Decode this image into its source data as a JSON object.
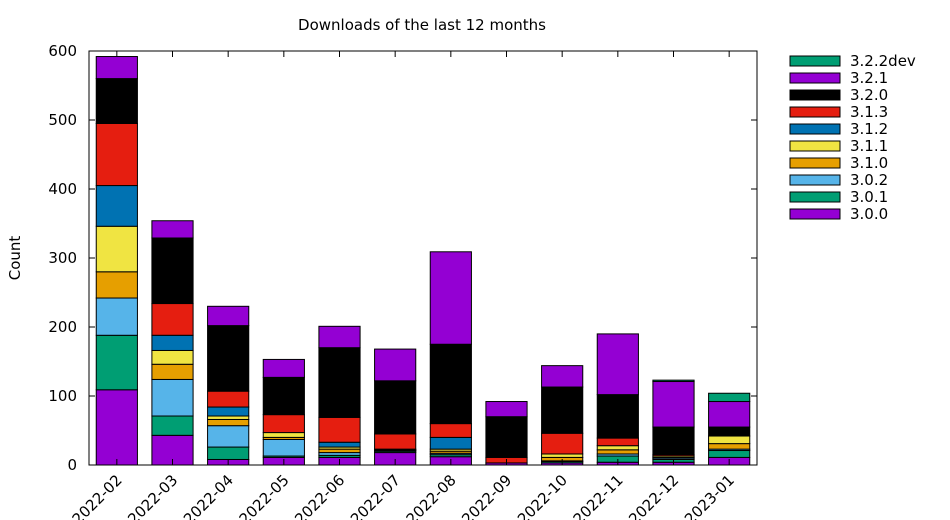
{
  "chart_data": {
    "type": "bar",
    "title": "Downloads of the last 12 months",
    "xlabel": "",
    "ylabel": "Count",
    "ylim": [
      0,
      600
    ],
    "yticks": [
      0,
      100,
      200,
      300,
      400,
      500,
      600
    ],
    "grid": false,
    "stacked": true,
    "legend_position": "right-outside",
    "categories": [
      "2022-02",
      "2022-03",
      "2022-04",
      "2022-05",
      "2022-06",
      "2022-07",
      "2022-08",
      "2022-09",
      "2022-10",
      "2022-11",
      "2022-12",
      "2023-01"
    ],
    "series": [
      {
        "name": "3.0.0",
        "color": "#9400d3",
        "values": [
          109,
          43,
          8,
          11,
          11,
          18,
          12,
          3,
          3,
          4,
          4,
          11
        ]
      },
      {
        "name": "3.0.1",
        "color": "#009e73",
        "values": [
          79,
          28,
          18,
          2,
          3,
          2,
          3,
          0,
          2,
          9,
          4,
          10
        ]
      },
      {
        "name": "3.0.2",
        "color": "#56b4e9",
        "values": [
          54,
          53,
          31,
          24,
          4,
          1,
          2,
          0,
          1,
          3,
          2,
          2
        ]
      },
      {
        "name": "3.1.0",
        "color": "#e69f00",
        "values": [
          38,
          22,
          9,
          3,
          5,
          1,
          3,
          0,
          5,
          6,
          1,
          8
        ]
      },
      {
        "name": "3.1.1",
        "color": "#f0e442",
        "values": [
          66,
          20,
          5,
          7,
          3,
          1,
          3,
          0,
          5,
          6,
          2,
          11
        ]
      },
      {
        "name": "3.1.2",
        "color": "#0072b2",
        "values": [
          59,
          22,
          13,
          0,
          7,
          0,
          17,
          0,
          0,
          0,
          0,
          0
        ]
      },
      {
        "name": "3.1.3",
        "color": "#e51e10",
        "values": [
          90,
          46,
          23,
          26,
          36,
          22,
          20,
          8,
          30,
          11,
          2,
          0
        ]
      },
      {
        "name": "3.2.0",
        "color": "#000000",
        "values": [
          65,
          95,
          95,
          54,
          101,
          77,
          115,
          59,
          67,
          63,
          40,
          13
        ]
      },
      {
        "name": "3.2.1",
        "color": "#9400d3",
        "values": [
          32,
          25,
          28,
          26,
          31,
          46,
          134,
          22,
          31,
          88,
          66,
          37
        ]
      },
      {
        "name": "3.2.2dev",
        "color": "#009e73",
        "values": [
          0,
          0,
          0,
          0,
          0,
          0,
          0,
          0,
          0,
          0,
          2,
          12
        ]
      }
    ]
  }
}
